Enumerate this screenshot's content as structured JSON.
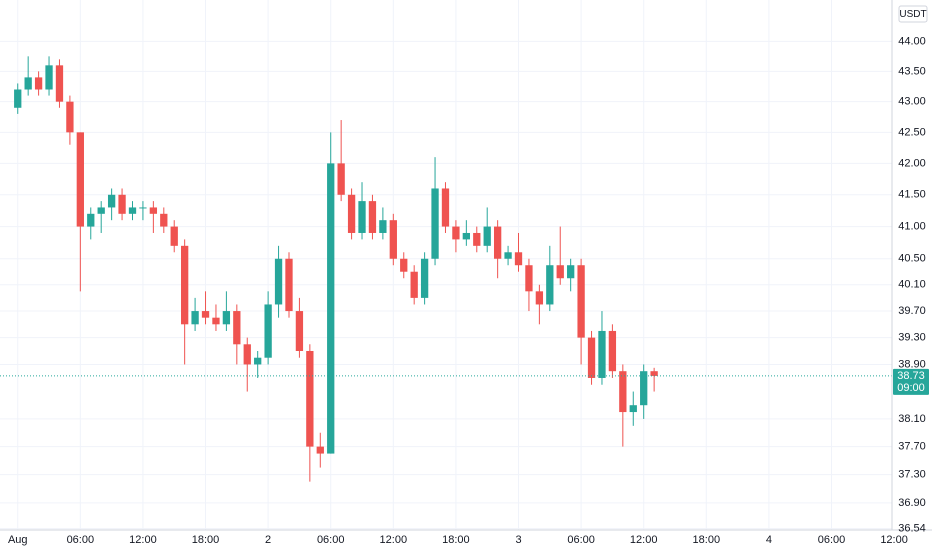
{
  "chart_data": {
    "type": "candlestick",
    "currency": "USDT",
    "x": [
      0,
      1,
      2,
      3,
      4,
      5,
      6,
      7,
      8,
      9,
      10,
      11,
      12,
      13,
      14,
      15,
      16,
      17,
      18,
      19,
      20,
      21,
      22,
      23,
      24,
      25,
      26,
      27,
      28,
      29,
      30,
      31,
      32,
      33,
      34,
      35,
      36,
      37,
      38,
      39,
      40,
      41,
      42,
      43,
      44,
      45,
      46,
      47,
      48,
      49,
      50,
      51,
      52,
      53,
      54,
      55,
      56,
      57,
      58,
      59,
      60,
      61
    ],
    "open": [
      42.9,
      43.2,
      43.4,
      43.2,
      43.6,
      43.0,
      42.5,
      41.0,
      41.2,
      41.3,
      41.5,
      41.2,
      41.3,
      41.3,
      41.2,
      41.0,
      40.7,
      39.5,
      39.7,
      39.6,
      39.5,
      39.7,
      39.2,
      38.9,
      39.0,
      39.8,
      40.5,
      39.7,
      39.1,
      37.7,
      37.6,
      42.0,
      41.5,
      40.9,
      41.4,
      40.9,
      41.1,
      40.5,
      40.3,
      39.9,
      40.5,
      41.6,
      41.0,
      40.8,
      40.9,
      40.7,
      41.0,
      40.5,
      40.6,
      40.4,
      40.0,
      39.8,
      40.4,
      40.2,
      40.4,
      39.3,
      38.7,
      39.4,
      38.8,
      38.2,
      38.3,
      38.8
    ],
    "high": [
      43.3,
      43.75,
      43.5,
      43.75,
      43.7,
      43.1,
      42.5,
      41.3,
      41.4,
      41.6,
      41.6,
      41.4,
      41.4,
      41.4,
      41.3,
      41.1,
      40.8,
      39.9,
      40.0,
      39.8,
      40.0,
      39.8,
      39.3,
      39.1,
      40.0,
      40.7,
      40.6,
      39.9,
      39.2,
      37.9,
      42.5,
      42.7,
      41.6,
      41.7,
      41.5,
      41.3,
      41.2,
      40.6,
      40.4,
      40.6,
      42.1,
      41.7,
      41.1,
      41.1,
      41.0,
      41.3,
      41.1,
      40.7,
      40.9,
      40.5,
      40.1,
      40.7,
      41.0,
      40.5,
      40.5,
      39.4,
      39.7,
      39.5,
      38.9,
      38.5,
      38.9,
      38.85
    ],
    "low": [
      42.8,
      43.1,
      43.1,
      43.1,
      42.9,
      42.3,
      40.0,
      40.8,
      40.9,
      41.1,
      41.1,
      41.1,
      41.1,
      40.9,
      40.9,
      40.6,
      38.9,
      39.4,
      39.5,
      39.4,
      39.4,
      38.9,
      38.5,
      38.7,
      38.9,
      39.6,
      39.6,
      39.0,
      37.2,
      37.4,
      37.6,
      41.4,
      40.8,
      40.8,
      40.8,
      40.8,
      40.4,
      40.2,
      39.8,
      39.8,
      40.4,
      40.9,
      40.6,
      40.7,
      40.6,
      40.6,
      40.2,
      40.4,
      40.3,
      39.7,
      39.5,
      39.7,
      40.1,
      40.0,
      38.9,
      38.6,
      38.6,
      38.7,
      37.7,
      38.0,
      38.1,
      38.5
    ],
    "close": [
      43.2,
      43.4,
      43.2,
      43.6,
      43.0,
      42.5,
      41.0,
      41.2,
      41.3,
      41.5,
      41.2,
      41.3,
      41.3,
      41.2,
      41.0,
      40.7,
      39.5,
      39.7,
      39.6,
      39.5,
      39.7,
      39.2,
      38.9,
      39.0,
      39.8,
      40.5,
      39.7,
      39.1,
      37.7,
      37.6,
      42.0,
      41.5,
      40.9,
      41.4,
      40.9,
      41.1,
      40.5,
      40.3,
      39.9,
      40.5,
      41.6,
      41.0,
      40.8,
      40.9,
      40.7,
      41.0,
      40.5,
      40.6,
      40.4,
      40.0,
      39.8,
      40.4,
      40.2,
      40.4,
      39.3,
      38.7,
      39.4,
      38.8,
      38.2,
      38.3,
      38.8,
      38.73
    ],
    "up_color": "#26a69a",
    "down_color": "#ef5350",
    "last_price": {
      "value": 38.73,
      "label": "38.73"
    },
    "countdown": "09:00",
    "log_scale": true,
    "grid": true,
    "xlim": [
      -1.7,
      83.8
    ],
    "ylim": [
      36.52,
      44.7
    ],
    "xticks": [
      {
        "value": 0,
        "label": "Aug"
      },
      {
        "value": 6,
        "label": "06:00"
      },
      {
        "value": 12,
        "label": "12:00"
      },
      {
        "value": 18,
        "label": "18:00"
      },
      {
        "value": 24,
        "label": "2"
      },
      {
        "value": 30,
        "label": "06:00"
      },
      {
        "value": 36,
        "label": "12:00"
      },
      {
        "value": 42,
        "label": "18:00"
      },
      {
        "value": 48,
        "label": "3"
      },
      {
        "value": 54,
        "label": "06:00"
      },
      {
        "value": 60,
        "label": "12:00"
      },
      {
        "value": 66,
        "label": "18:00"
      },
      {
        "value": 72,
        "label": "4"
      },
      {
        "value": 78,
        "label": "06:00"
      },
      {
        "value": 84,
        "label": "12:00"
      }
    ],
    "yticks": [
      {
        "value": 36.54,
        "label": "36.54"
      },
      {
        "value": 36.9,
        "label": "36.90"
      },
      {
        "value": 37.3,
        "label": "37.30"
      },
      {
        "value": 37.7,
        "label": "37.70"
      },
      {
        "value": 38.1,
        "label": "38.10"
      },
      {
        "value": 38.9,
        "label": "38.90"
      },
      {
        "value": 39.3,
        "label": "39.30"
      },
      {
        "value": 39.7,
        "label": "39.70"
      },
      {
        "value": 40.1,
        "label": "40.10"
      },
      {
        "value": 40.5,
        "label": "40.50"
      },
      {
        "value": 41,
        "label": "41.00"
      },
      {
        "value": 41.5,
        "label": "41.50"
      },
      {
        "value": 42,
        "label": "42.00"
      },
      {
        "value": 42.5,
        "label": "42.50"
      },
      {
        "value": 43,
        "label": "43.00"
      },
      {
        "value": 43.5,
        "label": "43.50"
      },
      {
        "value": 44,
        "label": "44.00"
      }
    ]
  }
}
